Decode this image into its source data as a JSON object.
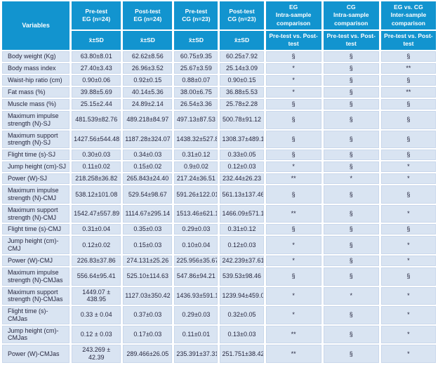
{
  "colors": {
    "header_bg": "#1294cf",
    "row_bg": "#d9e4f2",
    "cell_border": "#c9d7eb",
    "text_color": "#27273f"
  },
  "header": {
    "variables": "Variables",
    "groups": [
      {
        "title": "Pre-test\nEG (n=24)",
        "sub": "x̄±SD"
      },
      {
        "title": "Post-test\nEG (n=24)",
        "sub": "x̄±SD"
      },
      {
        "title": "Pre-test\nCG (n=23)",
        "sub": "x̄±SD"
      },
      {
        "title": "Post-test\nCG (n=23)",
        "sub": "x̄±SD"
      },
      {
        "title": "EG\nIntra-sample\ncomparison",
        "sub": "Pre-test vs. Post-\ntest"
      },
      {
        "title": "CG\nIntra-sample\ncomparison",
        "sub": "Pre-test vs. Post-\ntest"
      },
      {
        "title": "EG vs. CG\nInter-sample\ncomparison",
        "sub": "Pre-test vs. Post-\ntest"
      }
    ]
  },
  "rows": [
    {
      "label": "Body weight (Kg)",
      "cells": [
        "63.80±8.01",
        "62.62±8.56",
        "60.75±9.35",
        "60.25±7.92",
        "§",
        "§",
        "§"
      ]
    },
    {
      "label": "Body mass index",
      "cells": [
        "27.40±3.43",
        "26.96±3.52",
        "25.67±3.59",
        "25.14±3.09",
        "*",
        "§",
        "**"
      ]
    },
    {
      "label": "Waist-hip ratio (cm)",
      "cells": [
        "0.90±0.06",
        "0.92±0.15",
        "0.88±0.07",
        "0.90±0.15",
        "*",
        "§",
        "§"
      ]
    },
    {
      "label": "Fat mass (%)",
      "cells": [
        "39.88±5.69",
        "40.14±5.36",
        "38.00±6.75",
        "36.88±5.53",
        "*",
        "§",
        "**"
      ]
    },
    {
      "label": "Muscle mass (%)",
      "cells": [
        "25.15±2.44",
        "24.89±2.14",
        "26.54±3.36",
        "25.78±2.28",
        "§",
        "§",
        "§"
      ]
    },
    {
      "label": "Maximum impulse strength (N)-SJ",
      "cells": [
        "481.539±82.76",
        "489.218±84.97",
        "497.13±87.53",
        "500.78±91.12",
        "§",
        "§",
        "§"
      ]
    },
    {
      "label": "Maximum support strength (N)-SJ",
      "cells": [
        "1427.56±544.48",
        "1187.28±324.07",
        "1438.32±527.88",
        "1308.37±489.13",
        "§",
        "§",
        "§"
      ]
    },
    {
      "label": "Flight time (s)-SJ",
      "cells": [
        "0.30±0.03",
        "0.34±0.03",
        "0.31±0.12",
        "0.33±0.05",
        "§",
        "§",
        "§"
      ]
    },
    {
      "label": "Jump height (cm)-SJ",
      "cells": [
        "0.11±0.02",
        "0.15±0.02",
        "0.9±0.02",
        "0.12±0.03",
        "*",
        "§",
        "*"
      ]
    },
    {
      "label": "Power (W)-SJ",
      "cells": [
        "218.258±36.82",
        "265.843±24.40",
        "217.24±36.51",
        "232.44±26.23",
        "**",
        "*",
        "*"
      ]
    },
    {
      "label": "Maximum impulse strength (N)-CMJ",
      "cells": [
        "538.12±101.08",
        "529.54±98.67",
        "591.26±122.01",
        "561.13±137.46",
        "§",
        "§",
        "§"
      ]
    },
    {
      "label": "Maximum support strength (N)-CMJ",
      "cells": [
        "1542.47±557.89",
        "1114.67±295.14",
        "1513.46±621.11",
        "1466.09±571.16",
        "**",
        "§",
        "*"
      ]
    },
    {
      "label": "Flight time (s)-CMJ",
      "cells": [
        "0.31±0.04",
        "0.35±0.03",
        "0.29±0.03",
        "0.31±0.12",
        "§",
        "§",
        "§"
      ]
    },
    {
      "label": "Jump height (cm)-CMJ",
      "cells": [
        "0.12±0.02",
        "0.15±0.03",
        "0.10±0.04",
        "0.12±0.03",
        "*",
        "§",
        "*"
      ]
    },
    {
      "label": "Power (W)-CMJ",
      "cells": [
        "226.83±37.86",
        "274.131±25.26",
        "225.956±35.67",
        "242.239±37.61",
        "*",
        "§",
        "*"
      ]
    },
    {
      "label": "Maximum impulse strength (N)-CMJas",
      "cells": [
        "556.64±95.41",
        "525.10±114.63",
        "547.86±94.21",
        "539.53±98.46",
        "§",
        "§",
        "§"
      ]
    },
    {
      "label": "Maximum support strength (N)-CMJas",
      "cells": [
        "1449.07 ± 438.95",
        "1127.03±350.42",
        "1436.93±591.13",
        "1239.94±459.01",
        "*",
        "*",
        "*"
      ]
    },
    {
      "label": "Flight time (s)-CMJas",
      "cells": [
        "0.33 ± 0.04",
        "0.37±0.03",
        "0.29±0.03",
        "0.32±0.05",
        "*",
        "§",
        "*"
      ]
    },
    {
      "label": "Jump height (cm)-CMJas",
      "cells": [
        "0.12 ± 0.03",
        "0.17±0.03",
        "0.11±0.01",
        "0.13±0.03",
        "**",
        "§",
        "*"
      ]
    },
    {
      "label": "Power (W)-CMJas",
      "cells": [
        "243.269 ± 42.39",
        "289.466±26.05",
        "235.391±37.31",
        "251.751±38.42",
        "**",
        "§",
        "*"
      ]
    }
  ]
}
